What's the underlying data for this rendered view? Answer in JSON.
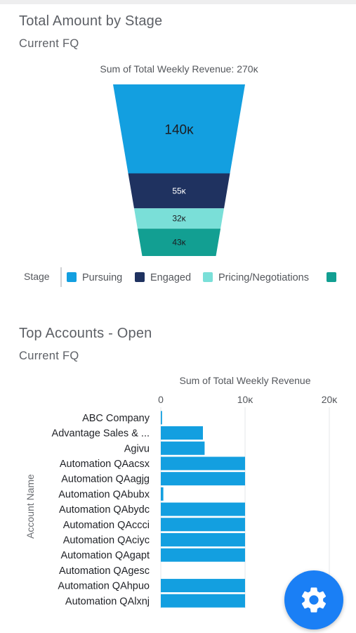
{
  "chart_data": [
    {
      "type": "funnel",
      "title": "Total Amount by Stage",
      "subtitle": "Current FQ",
      "summary": "Sum of Total Weekly Revenue: 270κ",
      "legend_title": "Stage",
      "legend_placement": "bottom",
      "categories": [
        "Pursuing",
        "Engaged",
        "Pricing/Negotiations",
        ""
      ],
      "values": [
        140000,
        55000,
        32000,
        43000
      ],
      "value_labels": [
        "140κ",
        "55κ",
        "32κ",
        "43κ"
      ],
      "colors": [
        "#139fe0",
        "#1f3260",
        "#7adfd8",
        "#129f92"
      ]
    },
    {
      "type": "bar",
      "orientation": "horizontal",
      "title": "Top Accounts - Open",
      "subtitle": "Current FQ",
      "xlabel": "Sum of Total Weekly Revenue",
      "ylabel": "Account Name",
      "xlim": [
        0,
        20000
      ],
      "xticks": [
        0,
        10000,
        20000
      ],
      "xtick_labels": [
        "0",
        "10κ",
        "20κ"
      ],
      "grid": true,
      "color": "#139fe0",
      "categories": [
        "ABC Company",
        "Advantage Sales & ...",
        "Agivu",
        "Automation QAacsx",
        "Automation QAagjg",
        "Automation QAbubx",
        "Automation QAbydc",
        "Automation QAccci",
        "Automation QAciyc",
        "Automation QAgapt",
        "Automation QAgesc",
        "Automation QAhpuo",
        "Automation QAlxnj"
      ],
      "values": [
        150,
        5000,
        5200,
        10000,
        10000,
        300,
        10000,
        10000,
        10000,
        10000,
        0,
        10000,
        10000
      ]
    }
  ],
  "fab": {
    "icon": "gear-icon",
    "color": "#1a7ff5"
  }
}
